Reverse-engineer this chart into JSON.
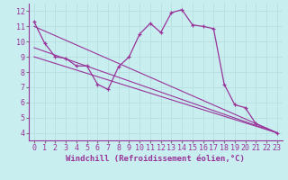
{
  "background_color": "#c8eef0",
  "grid_color": "#b8dfe0",
  "line_color": "#993399",
  "xlabel": "Windchill (Refroidissement éolien,°C)",
  "xlabel_fontsize": 6.5,
  "tick_fontsize": 6.0,
  "ylim": [
    3.5,
    12.5
  ],
  "yticks": [
    4,
    5,
    6,
    7,
    8,
    9,
    10,
    11,
    12
  ],
  "xlim": [
    -0.5,
    23.5
  ],
  "xticks": [
    0,
    1,
    2,
    3,
    4,
    5,
    6,
    7,
    8,
    9,
    10,
    11,
    12,
    13,
    14,
    15,
    16,
    17,
    18,
    19,
    20,
    21,
    22,
    23
  ],
  "main_x": [
    0,
    1,
    2,
    3,
    4,
    5,
    6,
    7,
    8,
    9,
    10,
    11,
    12,
    13,
    14,
    15,
    16,
    17,
    18,
    19,
    20,
    21,
    23
  ],
  "main_y": [
    11.3,
    9.9,
    9.0,
    8.9,
    8.4,
    8.4,
    7.2,
    6.85,
    8.35,
    9.0,
    10.5,
    11.2,
    10.6,
    11.9,
    12.1,
    11.1,
    11.0,
    10.85,
    7.2,
    5.85,
    5.65,
    4.6,
    4.0
  ],
  "trend1_x": [
    0,
    23
  ],
  "trend1_y": [
    11.0,
    4.0
  ],
  "trend2_x": [
    0,
    23
  ],
  "trend2_y": [
    9.6,
    4.0
  ],
  "trend3_x": [
    0,
    23
  ],
  "trend3_y": [
    9.0,
    4.0
  ]
}
